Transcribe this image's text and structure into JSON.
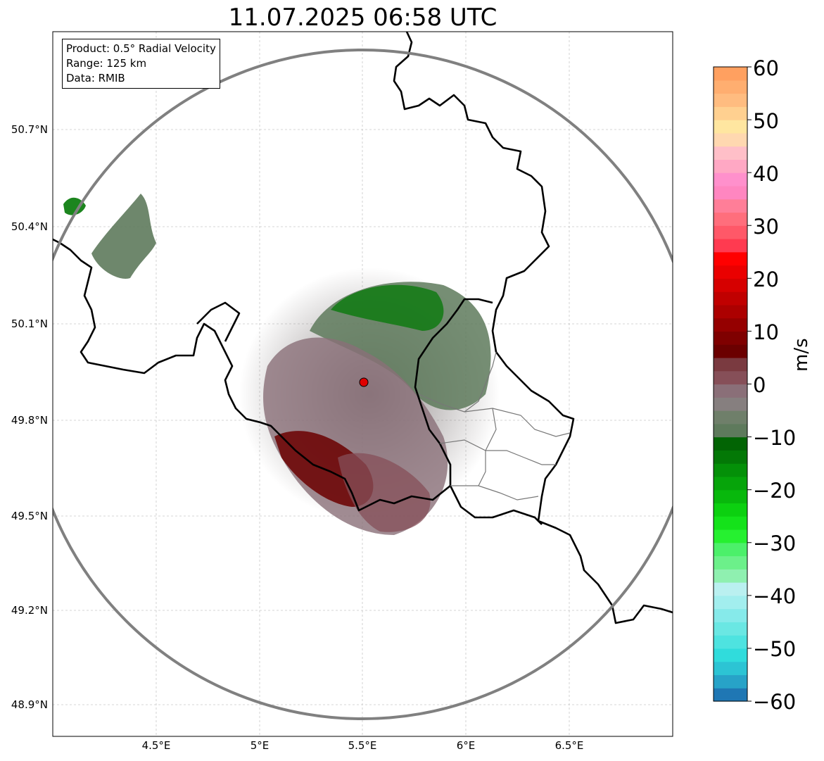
{
  "title": "11.07.2025 06:58 UTC",
  "info": {
    "product": "Product: 0.5° Radial Velocity",
    "range": "Range: 125 km",
    "data": "Data: RMIB"
  },
  "lat_labels": [
    "50.7°N",
    "50.4°N",
    "50.1°N",
    "49.8°N",
    "49.5°N",
    "49.2°N",
    "48.9°N"
  ],
  "lon_labels": [
    "4.5°E",
    "5°E",
    "5.5°E",
    "6°E",
    "6.5°E"
  ],
  "colorbar": {
    "unit_label": "m/s",
    "min": -60,
    "max": 60,
    "ticks": [
      "60",
      "50",
      "40",
      "30",
      "20",
      "10",
      "0",
      "−10",
      "−20",
      "−30",
      "−40",
      "−50",
      "−60"
    ],
    "colors": [
      "#1f77b4",
      "#27a3c8",
      "#2cc4d4",
      "#30dcdc",
      "#4ee3e0",
      "#6ae7e3",
      "#86eaea",
      "#a2eeee",
      "#baf0f0",
      "#8ff0b0",
      "#6cf08a",
      "#4cf06a",
      "#26f030",
      "#14e21a",
      "#0cd010",
      "#08b80c",
      "#06a40a",
      "#049008",
      "#037806",
      "#026404",
      "#5e7a5c",
      "#6f7f6a",
      "#867f7f",
      "#8a6f78",
      "#864f58",
      "#7a3a40",
      "#6b0000",
      "#7f0000",
      "#950000",
      "#ac0000",
      "#c00000",
      "#d60000",
      "#ea0000",
      "#ff0000",
      "#ff3a50",
      "#ff5868",
      "#ff6e7c",
      "#ff7e98",
      "#ff86c0",
      "#ff90cc",
      "#ffa8c4",
      "#ffbfc8",
      "#ffd8b0",
      "#ffe6a0",
      "#ffd090",
      "#ffbc80",
      "#ffae70",
      "#ffa060"
    ]
  },
  "radar_site": {
    "lon": 5.505,
    "lat": 49.914
  },
  "map_style": {
    "border_color": "#000000",
    "ring_color": "#808080",
    "grid_color": "#c8c8c8"
  }
}
